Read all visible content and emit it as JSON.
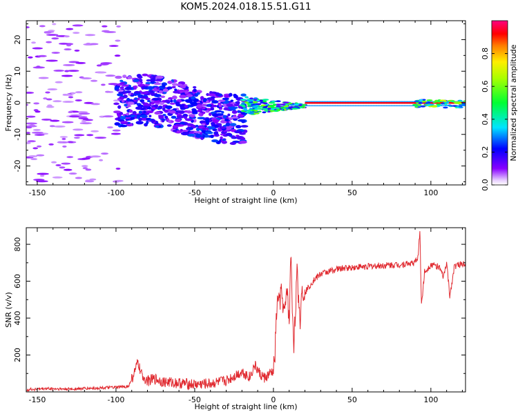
{
  "figure": {
    "title": "KOM5.2024.018.15.51.G11"
  },
  "chart_data": [
    {
      "type": "heatmap",
      "title": "KOM5.2024.018.15.51.G11",
      "xlabel": "Height of straight line (km)",
      "ylabel": "Frequency (Hz)",
      "xlim": [
        -157,
        122
      ],
      "ylim": [
        -26,
        26
      ],
      "xticks": [
        -150,
        -100,
        -50,
        0,
        50,
        100
      ],
      "yticks": [
        -20,
        -10,
        0,
        10,
        20
      ],
      "colorbar": {
        "label": "Normalized spectral amplitude",
        "ticks": [
          0.0,
          0.2,
          0.4,
          0.6,
          0.8
        ],
        "range": [
          0,
          1
        ],
        "colormap": "gist_rainbow-like (purple→blue→cyan→green→yellow→red→magenta)"
      },
      "features": [
        {
          "x_range": [
            -157,
            -100
          ],
          "freq_range": [
            -25,
            25
          ],
          "amplitude": "0.05-0.15 scattered noise"
        },
        {
          "x_range": [
            -100,
            -20
          ],
          "freq_range": [
            -12,
            10
          ],
          "amplitude": "0.1-0.3 broad blob"
        },
        {
          "x_range": [
            -20,
            20
          ],
          "freq_range": [
            -4,
            2
          ],
          "amplitude": "0.2-0.9 narrowing"
        },
        {
          "x_range": [
            20,
            90
          ],
          "freq_center": -0.5,
          "amplitude": "~1.0 carrier line"
        },
        {
          "x_range": [
            90,
            122
          ],
          "freq_center": -0.5,
          "amplitude": "0.5-1.0 carrier with side lobes"
        }
      ]
    },
    {
      "type": "line",
      "xlabel": "Height of straight line (km)",
      "ylabel": "SNR (v/v)",
      "xlim": [
        -157,
        122
      ],
      "ylim": [
        0,
        890
      ],
      "xticks": [
        -150,
        -100,
        -50,
        0,
        50,
        100
      ],
      "yticks": [
        200,
        400,
        600,
        800
      ],
      "series": [
        {
          "color": "#e0282e",
          "x": [
            -157,
            -145,
            -130,
            -115,
            -100,
            -92,
            -88,
            -86,
            -84,
            -80,
            -75,
            -70,
            -60,
            -50,
            -40,
            -30,
            -20,
            -15,
            -12,
            -8,
            -5,
            -2,
            0,
            1,
            2,
            3,
            4,
            5,
            7,
            9,
            10,
            11,
            12,
            13,
            15,
            17,
            18,
            20,
            25,
            30,
            40,
            50,
            60,
            70,
            80,
            90,
            92,
            93,
            94,
            96,
            100,
            105,
            108,
            110,
            112,
            115,
            118,
            122
          ],
          "y": [
            12,
            18,
            15,
            20,
            25,
            30,
            110,
            160,
            95,
            60,
            70,
            55,
            48,
            40,
            45,
            60,
            110,
            80,
            145,
            90,
            75,
            100,
            110,
            210,
            430,
            520,
            480,
            540,
            420,
            560,
            340,
            760,
            460,
            260,
            640,
            380,
            560,
            540,
            600,
            640,
            665,
            675,
            680,
            685,
            690,
            700,
            740,
            880,
            470,
            650,
            690,
            680,
            620,
            700,
            520,
            680,
            690,
            700
          ]
        }
      ]
    }
  ]
}
